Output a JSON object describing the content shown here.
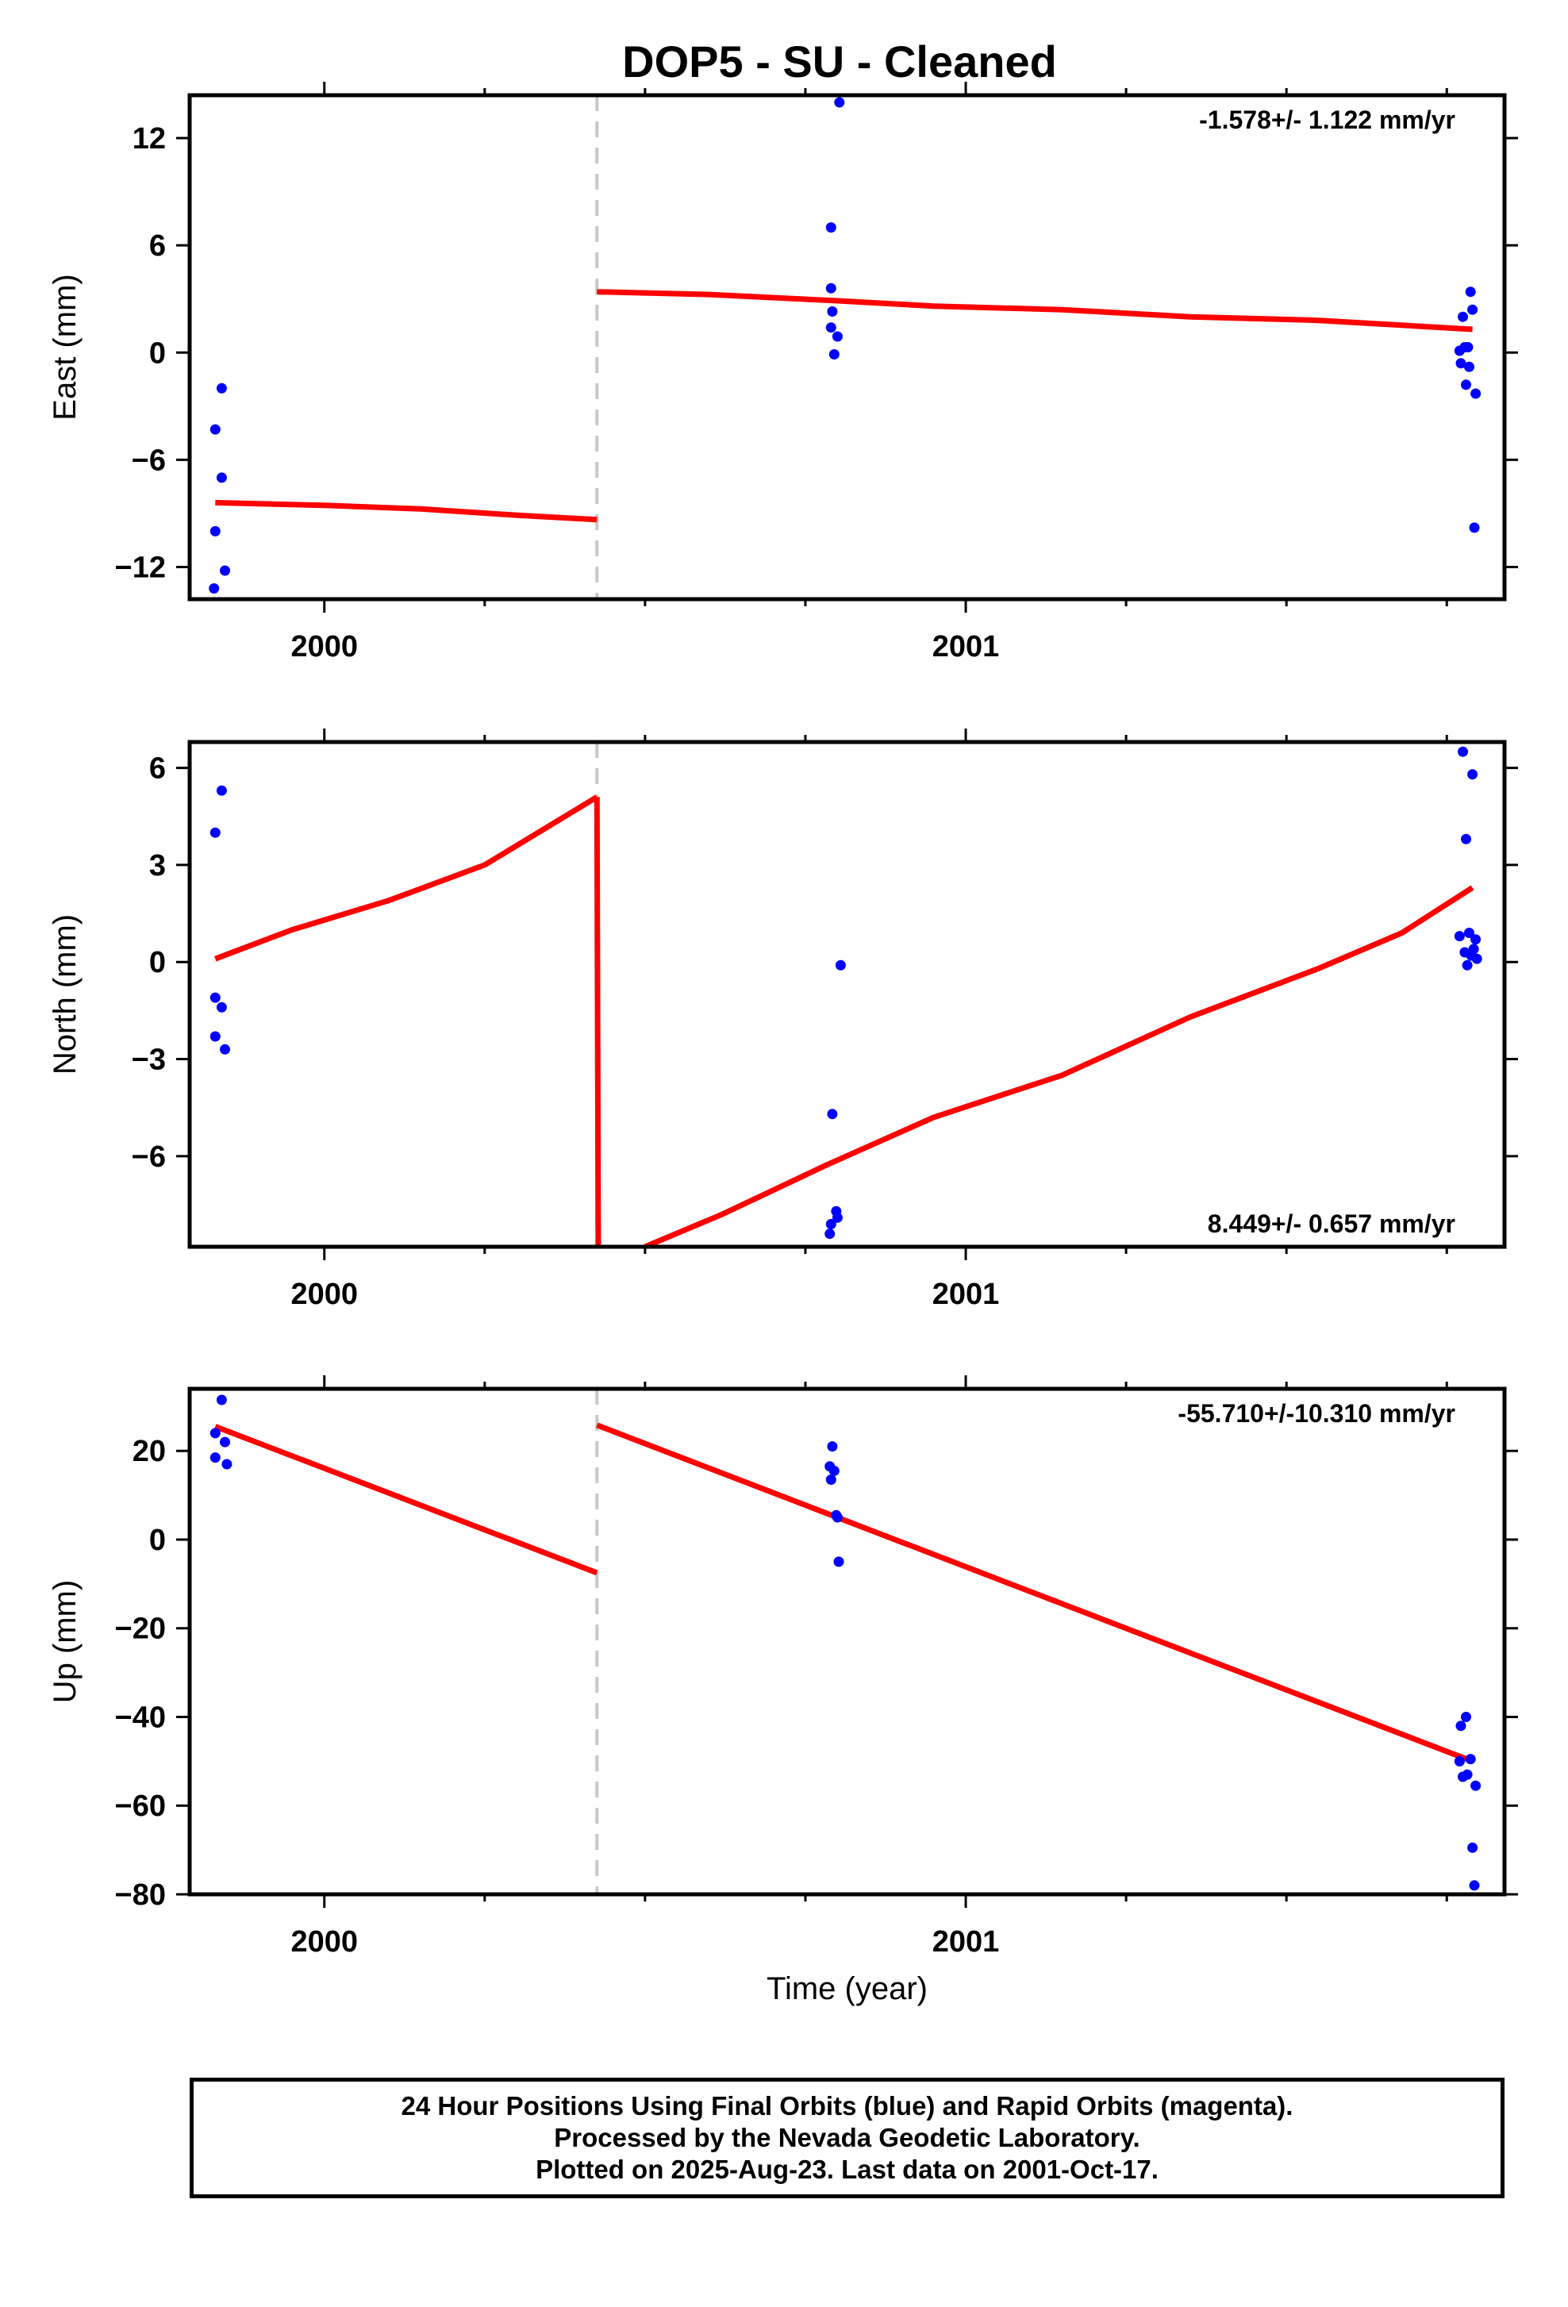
{
  "title": "DOP5  - SU - Cleaned",
  "colors": {
    "final_orbits": "#0000ff",
    "model": "#ff0000",
    "offset_line": "#c8c8c8",
    "axes": "#000000"
  },
  "footer": {
    "lines": [
      "24 Hour Positions Using Final Orbits (blue) and Rapid Orbits (magenta).",
      "Processed by the Nevada Geodetic Laboratory.",
      "Plotted on 2025-Aug-23. Last data on 2001-Oct-17."
    ]
  },
  "chart_data": [
    {
      "type": "scatter",
      "component": "East",
      "ylabel": "East (mm)",
      "xlabel": "",
      "xlim": [
        1999.79,
        2001.84
      ],
      "ylim": [
        -13.8,
        14.4
      ],
      "yticks": [
        -12,
        -6,
        0,
        6,
        12
      ],
      "xticks": [
        2000,
        2001
      ],
      "xminor": [
        2000.25,
        2000.5,
        2000.75,
        2001.25,
        2001.5,
        2001.75
      ],
      "velocity_label": "-1.578+/- 1.122 mm/yr",
      "offset_epoch": 2000.425,
      "points": [
        [
          1999.83,
          -4.3
        ],
        [
          1999.84,
          -2.0
        ],
        [
          1999.84,
          -7.0
        ],
        [
          1999.83,
          -10.0
        ],
        [
          1999.845,
          -12.2
        ],
        [
          1999.828,
          -13.2
        ],
        [
          2000.79,
          7.0
        ],
        [
          2000.79,
          3.6
        ],
        [
          2000.79,
          1.4
        ],
        [
          2000.792,
          2.3
        ],
        [
          2000.795,
          -0.1
        ],
        [
          2000.8,
          0.9
        ],
        [
          2000.803,
          14.0
        ],
        [
          2001.77,
          0.1
        ],
        [
          2001.772,
          -0.6
        ],
        [
          2001.775,
          2.0
        ],
        [
          2001.778,
          0.3
        ],
        [
          2001.78,
          -1.8
        ],
        [
          2001.783,
          0.3
        ],
        [
          2001.785,
          -0.8
        ],
        [
          2001.787,
          3.4
        ],
        [
          2001.79,
          2.4
        ],
        [
          2001.795,
          -2.3
        ],
        [
          2001.793,
          -9.8
        ]
      ],
      "model": [
        [
          [
            1999.83,
            -8.4
          ],
          [
            2000.0,
            -8.55
          ],
          [
            2000.15,
            -8.75
          ],
          [
            2000.3,
            -9.1
          ],
          [
            2000.425,
            -9.35
          ]
        ],
        [
          [
            2000.425,
            3.4
          ],
          [
            2000.6,
            3.25
          ],
          [
            2000.8,
            2.9
          ],
          [
            2000.95,
            2.6
          ],
          [
            2001.15,
            2.4
          ],
          [
            2001.35,
            2.0
          ],
          [
            2001.55,
            1.8
          ],
          [
            2001.79,
            1.3
          ]
        ]
      ]
    },
    {
      "type": "scatter",
      "component": "North",
      "ylabel": "North (mm)",
      "xlabel": "",
      "xlim": [
        1999.79,
        2001.84
      ],
      "ylim": [
        -8.8,
        6.8
      ],
      "yticks": [
        -6,
        -3,
        0,
        3,
        6
      ],
      "xticks": [
        2000,
        2001
      ],
      "xminor": [
        2000.25,
        2000.5,
        2000.75,
        2001.25,
        2001.5,
        2001.75
      ],
      "velocity_label": "8.449+/- 0.657 mm/yr",
      "offset_epoch": 2000.425,
      "points": [
        [
          1999.83,
          4.0
        ],
        [
          1999.84,
          5.3
        ],
        [
          1999.83,
          -1.1
        ],
        [
          1999.84,
          -1.4
        ],
        [
          1999.83,
          -2.3
        ],
        [
          1999.845,
          -2.7
        ],
        [
          2000.792,
          -4.7
        ],
        [
          2000.79,
          -8.1
        ],
        [
          2000.788,
          -8.4
        ],
        [
          2000.798,
          -7.7
        ],
        [
          2000.8,
          -7.9
        ],
        [
          2000.805,
          -0.1
        ],
        [
          2001.77,
          0.8
        ],
        [
          2001.775,
          6.5
        ],
        [
          2001.778,
          0.3
        ],
        [
          2001.78,
          3.8
        ],
        [
          2001.782,
          -0.1
        ],
        [
          2001.785,
          0.9
        ],
        [
          2001.788,
          0.2
        ],
        [
          2001.79,
          5.8
        ],
        [
          2001.792,
          0.4
        ],
        [
          2001.795,
          0.7
        ],
        [
          2001.797,
          0.1
        ]
      ],
      "model": [
        [
          [
            1999.83,
            0.1
          ],
          [
            1999.95,
            1.0
          ],
          [
            2000.1,
            1.9
          ],
          [
            2000.25,
            3.0
          ],
          [
            2000.425,
            5.1
          ]
        ],
        [
          [
            2000.425,
            5.1
          ],
          [
            2000.427,
            -8.8
          ]
        ],
        [
          [
            2000.5,
            -8.8
          ],
          [
            2000.62,
            -7.8
          ],
          [
            2000.78,
            -6.3
          ],
          [
            2000.95,
            -4.8
          ],
          [
            2001.15,
            -3.5
          ],
          [
            2001.35,
            -1.7
          ],
          [
            2001.55,
            -0.2
          ],
          [
            2001.68,
            0.9
          ],
          [
            2001.79,
            2.3
          ]
        ]
      ]
    },
    {
      "type": "scatter",
      "component": "Up",
      "ylabel": "Up (mm)",
      "xlabel": "Time (year)",
      "xlim": [
        1999.79,
        2001.84
      ],
      "ylim": [
        -80,
        34
      ],
      "yticks": [
        -80,
        -60,
        -40,
        -20,
        0,
        20
      ],
      "xticks": [
        2000,
        2001
      ],
      "xminor": [
        2000.25,
        2000.5,
        2000.75,
        2001.25,
        2001.5,
        2001.75
      ],
      "velocity_label": "-55.710+/-10.310 mm/yr",
      "offset_epoch": 2000.425,
      "points": [
        [
          1999.83,
          24.0
        ],
        [
          1999.84,
          31.5
        ],
        [
          1999.845,
          22.0
        ],
        [
          1999.83,
          18.5
        ],
        [
          1999.848,
          17.0
        ],
        [
          2000.788,
          16.5
        ],
        [
          2000.79,
          13.5
        ],
        [
          2000.792,
          21.0
        ],
        [
          2000.795,
          15.5
        ],
        [
          2000.8,
          5.0
        ],
        [
          2000.802,
          -5.0
        ],
        [
          2000.798,
          5.5
        ],
        [
          2001.77,
          -50.0
        ],
        [
          2001.772,
          -42.0
        ],
        [
          2001.775,
          -53.5
        ],
        [
          2001.78,
          -40.0
        ],
        [
          2001.782,
          -53.0
        ],
        [
          2001.787,
          -49.5
        ],
        [
          2001.79,
          -69.5
        ],
        [
          2001.793,
          -78.0
        ],
        [
          2001.795,
          -55.5
        ]
      ],
      "model": [
        [
          [
            1999.83,
            25.5
          ],
          [
            2000.425,
            -7.5
          ]
        ],
        [
          [
            2000.425,
            25.8
          ],
          [
            2001.79,
            -50.0
          ]
        ]
      ]
    }
  ]
}
